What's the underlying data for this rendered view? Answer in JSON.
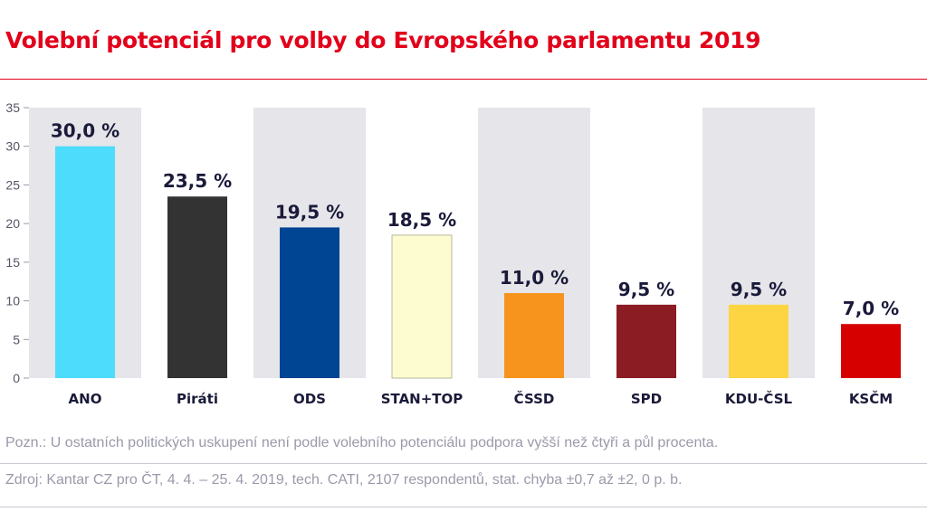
{
  "title": "Volební potenciál pro volby do Evropského parlamentu 2019",
  "note": "Pozn.: U ostatních politických uskupení není podle volebního potenciálu podpora vyšší než čtyři a půl procenta.",
  "source": "Zdroj: Kantar CZ pro ČT, 4. 4. – 25. 4. 2019, tech. CATI, 2107 respondentů, stat. chyba ±0,7 až ±2, 0 p. b.",
  "chart_data": {
    "type": "bar",
    "title": "Volební potenciál pro volby do Evropského parlamentu 2019",
    "xlabel": "",
    "ylabel": "",
    "ylim": [
      0,
      35
    ],
    "yticks": [
      0,
      5,
      10,
      15,
      20,
      25,
      30,
      35
    ],
    "categories": [
      "ANO",
      "Piráti",
      "ODS",
      "STAN+TOP",
      "ČSSD",
      "SPD",
      "KDU-ČSL",
      "KSČM"
    ],
    "values": [
      30.0,
      23.5,
      19.5,
      18.5,
      11.0,
      9.5,
      9.5,
      7.0
    ],
    "data_labels": [
      "30,0 %",
      "23,5 %",
      "19,5 %",
      "18,5 %",
      "11,0 %",
      "9,5 %",
      "9,5 %",
      "7,0 %"
    ],
    "colors": [
      "#4ddcfc",
      "#333333",
      "#004494",
      "#fdfcd0",
      "#f7941d",
      "#8b1c24",
      "#fdd441",
      "#d60000"
    ],
    "band_color": "#e5e5ea",
    "grid": false
  }
}
